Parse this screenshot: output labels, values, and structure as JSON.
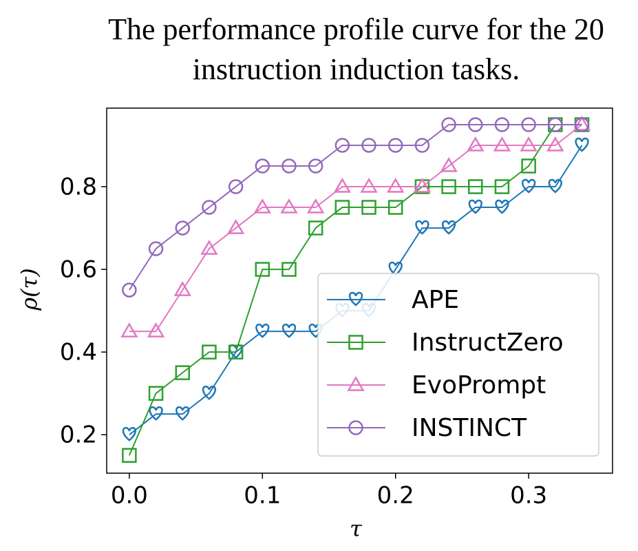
{
  "chart_data": {
    "type": "line",
    "title": "The performance profile curve for the 20 instruction induction tasks.",
    "xlabel": "τ",
    "ylabel": "ρ(τ)",
    "x": [
      0,
      0.02,
      0.04,
      0.06,
      0.08,
      0.1,
      0.12,
      0.14,
      0.16,
      0.18,
      0.2,
      0.22,
      0.24,
      0.26,
      0.28,
      0.3,
      0.32,
      0.34
    ],
    "series": [
      {
        "name": "APE",
        "color": "#1f77b4",
        "marker": "heart",
        "values": [
          0.2,
          0.25,
          0.25,
          0.3,
          0.4,
          0.45,
          0.45,
          0.45,
          0.5,
          0.5,
          0.6,
          0.7,
          0.7,
          0.75,
          0.75,
          0.8,
          0.8,
          0.9
        ]
      },
      {
        "name": "InstructZero",
        "color": "#2ca02c",
        "marker": "square",
        "values": [
          0.15,
          0.3,
          0.35,
          0.4,
          0.4,
          0.6,
          0.6,
          0.7,
          0.75,
          0.75,
          0.75,
          0.8,
          0.8,
          0.8,
          0.8,
          0.85,
          0.95,
          0.95
        ]
      },
      {
        "name": "EvoPrompt",
        "color": "#e377c2",
        "marker": "triangle",
        "values": [
          0.45,
          0.45,
          0.55,
          0.65,
          0.7,
          0.75,
          0.75,
          0.75,
          0.8,
          0.8,
          0.8,
          0.8,
          0.85,
          0.9,
          0.9,
          0.9,
          0.9,
          0.95
        ]
      },
      {
        "name": "INSTINCT",
        "color": "#9467bd",
        "marker": "circle",
        "values": [
          0.55,
          0.65,
          0.7,
          0.75,
          0.8,
          0.85,
          0.85,
          0.85,
          0.9,
          0.9,
          0.9,
          0.9,
          0.95,
          0.95,
          0.95,
          0.95,
          0.95,
          0.95
        ]
      }
    ],
    "xlim": [
      -0.017,
      0.363
    ],
    "ylim": [
      0.107,
      0.99
    ],
    "xticks": [
      {
        "value": 0,
        "label": "0.0"
      },
      0.1,
      0.2,
      0.3
    ],
    "yticks": [
      0.2,
      0.4,
      0.6,
      0.8
    ],
    "legend": "lower right",
    "grid": false
  }
}
